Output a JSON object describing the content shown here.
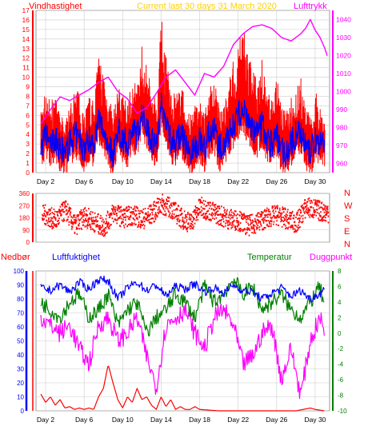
{
  "colors": {
    "wind": "#ff0000",
    "wind_avg": "#0000ff",
    "pressure": "#ff00ff",
    "direction": "#ff0000",
    "humidity": "#0000ff",
    "temperature": "#008000",
    "dewpoint": "#ff00ff",
    "rain": "#ff0000",
    "title": "#ffd000",
    "grid": "#cccccc"
  },
  "chart_data": [
    {
      "type": "line",
      "title": "Current last 30 days 31 March 2020",
      "ylabel_left": "Vindhastighet",
      "ylabel_right": "Lufttrykk",
      "ylim_left": [
        0,
        17
      ],
      "yticks_left": [
        "0",
        "1",
        "2",
        "3",
        "4",
        "5",
        "6",
        "7",
        "8",
        "9",
        "10",
        "11",
        "12",
        "13",
        "14",
        "15",
        "16",
        "17"
      ],
      "ylim_right": [
        955,
        1045
      ],
      "yticks_right": [
        "960",
        "970",
        "980",
        "990",
        "1000",
        "1010",
        "1020",
        "1030",
        "1040"
      ],
      "x_ticks": [
        "Day 2",
        "Day 6",
        "Day 10",
        "Day 14",
        "Day 18",
        "Day 22",
        "Day 26",
        "Day 30"
      ],
      "x_tick_days": [
        2,
        6,
        10,
        14,
        18,
        22,
        26,
        30
      ],
      "xlim": [
        1,
        31.5
      ],
      "grid": true,
      "series": [
        {
          "name": "Vindhastighet",
          "axis": "left",
          "style": "gust-band",
          "x": [
            1.5,
            2,
            2.5,
            3,
            3.5,
            4,
            4.5,
            5,
            5.5,
            6,
            6.5,
            7,
            7.5,
            8,
            8.5,
            9,
            9.5,
            10,
            10.5,
            11,
            11.5,
            12,
            12.5,
            13,
            13.5,
            14,
            14.5,
            15,
            15.5,
            16,
            16.5,
            17,
            17.5,
            18,
            18.5,
            19,
            19.5,
            20,
            20.5,
            21,
            21.5,
            22,
            22.5,
            23,
            23.5,
            24,
            24.5,
            25,
            25.5,
            26,
            26.5,
            27,
            27.5,
            28,
            28.5,
            29,
            29.5,
            30,
            30.5,
            31
          ],
          "values": [
            6.5,
            9,
            7.5,
            8,
            6,
            5.5,
            7,
            9,
            8.5,
            7,
            8,
            7.5,
            12.5,
            11,
            8.5,
            6,
            9.5,
            8,
            7.5,
            10,
            9,
            13.5,
            11,
            9,
            8,
            16.5,
            13,
            9,
            8,
            9.5,
            7.5,
            6,
            7,
            8,
            6.5,
            9,
            10,
            7,
            8,
            9.5,
            12,
            14,
            15.5,
            13,
            11,
            10.5,
            12,
            8.5,
            8,
            10,
            7,
            6.5,
            8,
            9,
            10,
            7,
            6,
            8.5,
            7.5,
            6
          ]
        },
        {
          "name": "Vindhastighet middel",
          "axis": "left",
          "x": [
            1.5,
            2,
            2.5,
            3,
            3.5,
            4,
            4.5,
            5,
            5.5,
            6,
            6.5,
            7,
            7.5,
            8,
            8.5,
            9,
            9.5,
            10,
            10.5,
            11,
            11.5,
            12,
            12.5,
            13,
            13.5,
            14,
            14.5,
            15,
            15.5,
            16,
            16.5,
            17,
            17.5,
            18,
            18.5,
            19,
            19.5,
            20,
            20.5,
            21,
            21.5,
            22,
            22.5,
            23,
            23.5,
            24,
            24.5,
            25,
            25.5,
            26,
            26.5,
            27,
            27.5,
            28,
            28.5,
            29,
            29.5,
            30,
            30.5,
            31
          ],
          "values": [
            2.5,
            4,
            3,
            3.5,
            2.5,
            2,
            3,
            4,
            3.5,
            2.5,
            3.5,
            3,
            5.5,
            4.5,
            3,
            2,
            4.5,
            3.5,
            3,
            4.5,
            4,
            6,
            5,
            3.5,
            3,
            7,
            5.5,
            3.5,
            3,
            4,
            3,
            2,
            2.5,
            3.5,
            2.5,
            4,
            4.5,
            2.5,
            3,
            4,
            5,
            6,
            6.5,
            5.5,
            4.5,
            4,
            5,
            3.5,
            3,
            4,
            2.5,
            2,
            3,
            4,
            4.5,
            2.5,
            2,
            3.5,
            3,
            2.5
          ]
        },
        {
          "name": "Lufttrykk",
          "axis": "right",
          "x": [
            1.5,
            2.5,
            3.5,
            4.5,
            5.5,
            6.5,
            7.5,
            8.5,
            9.5,
            10.5,
            11.5,
            12.5,
            13.5,
            14.5,
            15.5,
            16.5,
            17.5,
            18.5,
            19.5,
            20.5,
            21.5,
            22.5,
            23.5,
            24.5,
            25.5,
            26.5,
            27.5,
            28.5,
            29,
            29.5,
            30,
            30.5,
            31,
            31.3
          ],
          "values": [
            982,
            990,
            997,
            995,
            998,
            1001,
            1005,
            1008,
            1000,
            996,
            988,
            991,
            999,
            1008,
            1012,
            1005,
            998,
            1010,
            1008,
            1014,
            1026,
            1032,
            1036,
            1037,
            1035,
            1030,
            1028,
            1032,
            1035,
            1040,
            1034,
            1030,
            1024,
            1019
          ]
        }
      ]
    },
    {
      "type": "scatter",
      "ylabel_right": [
        "N",
        "W",
        "S",
        "E",
        "N"
      ],
      "ylim": [
        0,
        360
      ],
      "yticks": [
        "0",
        "90",
        "180",
        "270",
        "360"
      ],
      "xlim": [
        1,
        31.5
      ],
      "series": [
        {
          "name": "Vindretning",
          "x": [
            2,
            3,
            4,
            5,
            6,
            7,
            8,
            9,
            10,
            11,
            12,
            13,
            14,
            15,
            16,
            17,
            18,
            19,
            20,
            21,
            22,
            23,
            24,
            25,
            26,
            27,
            28,
            29,
            30,
            31
          ],
          "values": [
            200,
            160,
            240,
            120,
            190,
            150,
            110,
            220,
            180,
            200,
            170,
            210,
            280,
            250,
            180,
            140,
            260,
            230,
            200,
            170,
            160,
            120,
            150,
            180,
            200,
            170,
            140,
            260,
            240,
            220
          ]
        }
      ]
    },
    {
      "type": "line",
      "ylabel_left_outer": "Nedbør",
      "ylabel_left": "Luftfuktighet",
      "ylabel_right_inner": "Temperatur",
      "ylabel_right": "Duggpunkt",
      "ylim_left": [
        0,
        100
      ],
      "yticks_left": [
        "0",
        "10",
        "20",
        "30",
        "40",
        "50",
        "60",
        "70",
        "80",
        "90",
        "100"
      ],
      "ylim_right": [
        -10,
        8
      ],
      "yticks_right": [
        "-10",
        "-8",
        "-6",
        "-4",
        "-2",
        "0",
        "2",
        "4",
        "6",
        "8"
      ],
      "x_ticks": [
        "Day 2",
        "Day 6",
        "Day 10",
        "Day 14",
        "Day 18",
        "Day 22",
        "Day 26",
        "Day 30"
      ],
      "x_tick_days": [
        2,
        6,
        10,
        14,
        18,
        22,
        26,
        30
      ],
      "xlim": [
        1,
        31.5
      ],
      "grid": true,
      "series": [
        {
          "name": "Luftfuktighet",
          "axis": "left",
          "x": [
            1.5,
            2.5,
            3.5,
            4.5,
            5.5,
            6.5,
            7.5,
            8.5,
            9.5,
            10.5,
            11.5,
            12.5,
            13.5,
            14.5,
            15.5,
            16.5,
            17.5,
            18.5,
            19.5,
            20.5,
            21.5,
            22.5,
            23.5,
            24.5,
            25.5,
            26.5,
            27.5,
            28.5,
            29.5,
            30.5,
            31
          ],
          "values": [
            88,
            86,
            90,
            85,
            92,
            87,
            94,
            93,
            80,
            88,
            92,
            86,
            90,
            82,
            89,
            87,
            91,
            85,
            88,
            84,
            90,
            86,
            85,
            80,
            84,
            88,
            82,
            86,
            80,
            84,
            87
          ]
        },
        {
          "name": "Temperatur",
          "axis": "right",
          "x": [
            1.5,
            2.5,
            3.5,
            4.5,
            5.5,
            6.5,
            7.5,
            8.5,
            9.5,
            10.5,
            11.5,
            12.5,
            13.5,
            14.5,
            15.5,
            16.5,
            17.5,
            18.5,
            19.5,
            20.5,
            21.5,
            22.5,
            23.5,
            24.5,
            25.5,
            26.5,
            27.5,
            28.5,
            29.5,
            30.5,
            31
          ],
          "values": [
            4,
            3,
            2,
            4,
            5,
            2,
            3,
            5,
            1,
            3,
            4,
            0,
            2,
            3,
            5,
            4,
            2,
            6,
            4,
            5,
            7,
            5,
            6,
            3,
            4,
            5,
            3,
            2,
            4,
            6,
            3
          ]
        },
        {
          "name": "Duggpunkt",
          "axis": "right",
          "x": [
            1.5,
            2.5,
            3.5,
            4.5,
            5.5,
            6.5,
            7.5,
            8.5,
            9.5,
            10.5,
            11.5,
            12.5,
            13.5,
            14.5,
            15.5,
            16.5,
            17.5,
            18.5,
            19.5,
            20.5,
            21.5,
            22.5,
            23.5,
            24.5,
            25.5,
            26.5,
            27.5,
            28.5,
            29.5,
            30.5,
            31
          ],
          "values": [
            2,
            1,
            0,
            1,
            -2,
            -4,
            1,
            2,
            -1,
            0,
            2,
            -3,
            -7,
            1,
            2,
            3,
            0,
            -2,
            2,
            3,
            1,
            -4,
            -3,
            0,
            1,
            -6,
            -2,
            -8,
            -1,
            2,
            0
          ]
        },
        {
          "name": "Nedbør",
          "axis": "left",
          "x": [
            1.5,
            2,
            2.5,
            3,
            3.5,
            4,
            4.5,
            5,
            5.5,
            6,
            6.5,
            7,
            7.5,
            8,
            8.5,
            9,
            9.5,
            10,
            10.5,
            11,
            11.5,
            12,
            12.5,
            13,
            13.5,
            14,
            14.5,
            15,
            15.5,
            16,
            16.5,
            17,
            17.5,
            18,
            20,
            22,
            24,
            26,
            28,
            29.5,
            30,
            31
          ],
          "values": [
            12,
            6,
            10,
            4,
            8,
            2,
            3,
            1,
            2,
            1,
            2,
            1,
            10,
            16,
            33,
            20,
            8,
            2,
            10,
            6,
            16,
            8,
            10,
            4,
            1,
            10,
            3,
            8,
            1,
            3,
            1,
            1,
            3,
            1,
            0,
            0,
            0,
            0,
            0,
            2,
            1,
            0
          ]
        }
      ]
    }
  ]
}
